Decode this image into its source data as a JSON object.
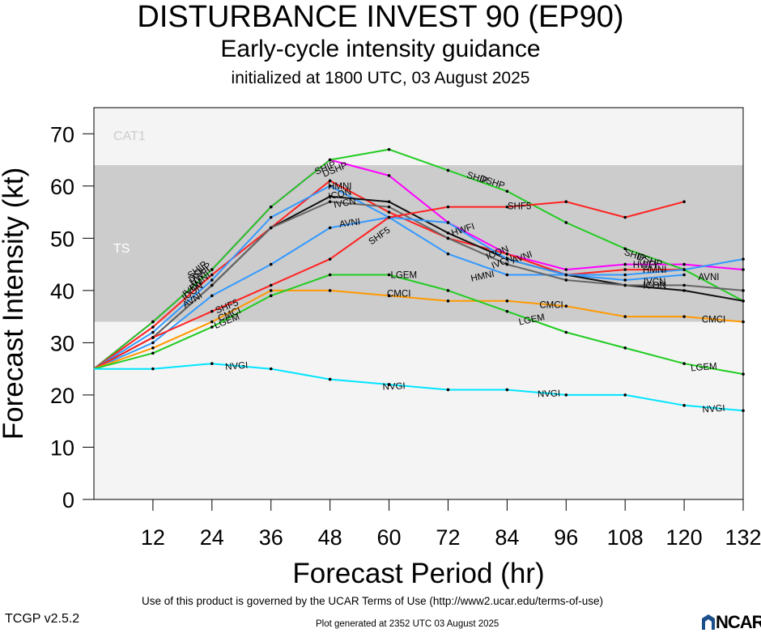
{
  "header": {
    "title": "DISTURBANCE INVEST 90 (EP90)",
    "subtitle": "Early-cycle intensity guidance",
    "subtitle2": "initialized at 1800 UTC, 03 August 2025"
  },
  "footer": {
    "terms": "Use of this product is governed by the UCAR Terms of Use (http://www2.ucar.edu/terms-of-use)",
    "version": "TCGP v2.5.2",
    "generated": "Plot generated at 2352 UTC   03 August 2025",
    "logo_text": "NCAR"
  },
  "chart_data": {
    "type": "line",
    "xlabel": "Forecast Period (hr)",
    "ylabel": "Forecast Intensity (kt)",
    "xlim": [
      0,
      132
    ],
    "ylim": [
      0,
      75
    ],
    "xticks": [
      12,
      24,
      36,
      48,
      60,
      72,
      84,
      96,
      108,
      120,
      132
    ],
    "yticks": [
      0,
      10,
      20,
      30,
      40,
      50,
      60,
      70
    ],
    "bands": [
      {
        "label": "CAT1",
        "from": 64,
        "to": 75,
        "color": "#f4f4f4"
      },
      {
        "label": "TS",
        "from": 34,
        "to": 64,
        "color": "#cccccc"
      },
      {
        "label": "",
        "from": 0,
        "to": 34,
        "color": "#f4f4f4"
      }
    ],
    "series": [
      {
        "name": "SHIP",
        "color": "#ff00ff",
        "x": [
          0,
          12,
          24,
          36,
          48
        ],
        "y": [
          25,
          34,
          44,
          56,
          65
        ]
      },
      {
        "name": "DSHP",
        "color": "#ff00ff",
        "x": [
          0,
          12,
          24,
          36,
          48,
          60,
          72,
          84,
          96,
          108,
          120,
          132
        ],
        "y": [
          25,
          34,
          44,
          56,
          65,
          62,
          53,
          47,
          44,
          45,
          45,
          44
        ]
      },
      {
        "name": "SHIP",
        "color": "#22cc22",
        "x": [
          0,
          12,
          24,
          36,
          48,
          60,
          72,
          84,
          96,
          108,
          120,
          132
        ],
        "y": [
          25,
          34,
          44,
          56,
          65,
          67,
          63,
          59,
          53,
          48,
          44,
          38
        ]
      },
      {
        "name": "HWFI",
        "color": "#ff2222",
        "x": [
          0,
          12,
          24,
          36,
          48,
          60,
          72,
          84,
          96,
          108,
          120
        ],
        "y": [
          25,
          33,
          43,
          52,
          61,
          55,
          50,
          47,
          43,
          44,
          44
        ]
      },
      {
        "name": "HMNI",
        "color": "#3399ff",
        "x": [
          0,
          12,
          24,
          36,
          48,
          60,
          72,
          84,
          96,
          108,
          120
        ],
        "y": [
          25,
          32,
          42,
          54,
          60,
          54,
          47,
          43,
          43,
          42,
          43
        ]
      },
      {
        "name": "ICON",
        "color": "#111111",
        "x": [
          0,
          12,
          24,
          36,
          48,
          60,
          72,
          84,
          96,
          108,
          120,
          132
        ],
        "y": [
          25,
          31,
          41,
          52,
          58,
          57,
          51,
          46,
          43,
          41,
          40,
          38
        ]
      },
      {
        "name": "IVCN",
        "color": "#666666",
        "x": [
          0,
          12,
          24,
          36,
          48,
          60,
          72,
          84,
          96,
          108,
          120,
          132
        ],
        "y": [
          25,
          31,
          41,
          52,
          57,
          56,
          50,
          45,
          42,
          41,
          41,
          40
        ]
      },
      {
        "name": "AVNI",
        "color": "#3399ff",
        "x": [
          0,
          12,
          24,
          36,
          48,
          60,
          72,
          84,
          96,
          108,
          120,
          132
        ],
        "y": [
          25,
          30,
          39,
          45,
          52,
          54,
          53,
          46,
          43,
          43,
          44,
          46
        ]
      },
      {
        "name": "SHF5",
        "color": "#ff2222",
        "x": [
          0,
          12,
          24,
          36,
          48,
          60,
          72,
          84,
          96,
          108,
          120
        ],
        "y": [
          25,
          31,
          36,
          41,
          46,
          54,
          56,
          56,
          57,
          54,
          57
        ]
      },
      {
        "name": "CMCI",
        "color": "#ff9900",
        "x": [
          0,
          12,
          24,
          36,
          48,
          60,
          72,
          84,
          96,
          108,
          120,
          132
        ],
        "y": [
          25,
          29,
          34,
          40,
          40,
          39,
          38,
          38,
          37,
          35,
          35,
          34
        ]
      },
      {
        "name": "LGEM",
        "color": "#22cc22",
        "x": [
          0,
          12,
          24,
          36,
          48,
          60,
          72,
          84,
          96,
          108,
          120,
          132
        ],
        "y": [
          25,
          28,
          33,
          39,
          43,
          43,
          40,
          36,
          32,
          29,
          26,
          24
        ]
      },
      {
        "name": "NVGI",
        "color": "#00e5ff",
        "x": [
          0,
          12,
          24,
          36,
          48,
          60,
          72,
          84,
          96,
          108,
          120,
          132
        ],
        "y": [
          25,
          25,
          26,
          25,
          23,
          22,
          21,
          21,
          20,
          20,
          18,
          17
        ]
      }
    ],
    "labels": [
      {
        "text": "SHIP",
        "x": 47,
        "y": 63.5,
        "rot": -22
      },
      {
        "text": "DSHP",
        "x": 49,
        "y": 63.2,
        "rot": -22
      },
      {
        "text": "SHIP",
        "x": 78,
        "y": 61.6,
        "rot": 18
      },
      {
        "text": "DSHP",
        "x": 81,
        "y": 60.8,
        "rot": 18
      },
      {
        "text": "SHIP",
        "x": 110,
        "y": 46.8,
        "rot": 18
      },
      {
        "text": "DSHP",
        "x": 113,
        "y": 45.8,
        "rot": 18
      },
      {
        "text": "HMNI",
        "x": 50,
        "y": 60,
        "rot": 0
      },
      {
        "text": "ICON",
        "x": 50,
        "y": 58.5,
        "rot": -12
      },
      {
        "text": "IVCN",
        "x": 51,
        "y": 56.8,
        "rot": -10
      },
      {
        "text": "AVNI",
        "x": 52,
        "y": 53,
        "rot": -8
      },
      {
        "text": "SHF5",
        "x": 58,
        "y": 50.5,
        "rot": -35
      },
      {
        "text": "HWFI",
        "x": 75,
        "y": 51.7,
        "rot": -18
      },
      {
        "text": "ICON",
        "x": 82,
        "y": 47.3,
        "rot": -22
      },
      {
        "text": "AVNI",
        "x": 87,
        "y": 46.4,
        "rot": -20
      },
      {
        "text": "IVCN",
        "x": 83,
        "y": 45.5,
        "rot": -22
      },
      {
        "text": "HMNI",
        "x": 79,
        "y": 42.8,
        "rot": -12
      },
      {
        "text": "SHF5",
        "x": 86.5,
        "y": 56.2,
        "rot": 0
      },
      {
        "text": "HWFI",
        "x": 112,
        "y": 44.9,
        "rot": 0
      },
      {
        "text": "HMNI",
        "x": 114,
        "y": 44,
        "rot": 0
      },
      {
        "text": "IVCN",
        "x": 114,
        "y": 41.7,
        "rot": 0
      },
      {
        "text": "ICON",
        "x": 114,
        "y": 41,
        "rot": 0
      },
      {
        "text": "AVNI",
        "x": 125,
        "y": 42.6,
        "rot": 0
      },
      {
        "text": "CMCI",
        "x": 62,
        "y": 39.4,
        "rot": 0
      },
      {
        "text": "CMCI",
        "x": 93,
        "y": 37.3,
        "rot": 0
      },
      {
        "text": "CMCI",
        "x": 126,
        "y": 34.5,
        "rot": 0
      },
      {
        "text": "LGEM",
        "x": 63,
        "y": 43,
        "rot": 0
      },
      {
        "text": "LGEM",
        "x": 89,
        "y": 34.5,
        "rot": -12
      },
      {
        "text": "LGEM",
        "x": 124,
        "y": 25.4,
        "rot": -5
      },
      {
        "text": "NVGI",
        "x": 29,
        "y": 25.6,
        "rot": -5
      },
      {
        "text": "NVGI",
        "x": 61,
        "y": 21.7,
        "rot": -3
      },
      {
        "text": "NVGI",
        "x": 92.5,
        "y": 20.3,
        "rot": -2
      },
      {
        "text": "NVGI",
        "x": 126,
        "y": 17.4,
        "rot": -4
      },
      {
        "text": "SHIP",
        "x": 21,
        "y": 44,
        "rot": -38
      },
      {
        "text": "DSHP",
        "x": 21.5,
        "y": 43.5,
        "rot": -38
      },
      {
        "text": "HWFI",
        "x": 21.5,
        "y": 42.8,
        "rot": -38
      },
      {
        "text": "HMNI",
        "x": 21.5,
        "y": 41.8,
        "rot": -38
      },
      {
        "text": "IVCN",
        "x": 20,
        "y": 40.5,
        "rot": -38
      },
      {
        "text": "ICON",
        "x": 20,
        "y": 39.8,
        "rot": -36
      },
      {
        "text": "AVNI",
        "x": 20,
        "y": 38.2,
        "rot": -32
      },
      {
        "text": "SHF5",
        "x": 27,
        "y": 37,
        "rot": -22
      },
      {
        "text": "CMCI",
        "x": 27.5,
        "y": 35.5,
        "rot": -22
      },
      {
        "text": "LGEM",
        "x": 27,
        "y": 34.2,
        "rot": -22
      }
    ]
  }
}
